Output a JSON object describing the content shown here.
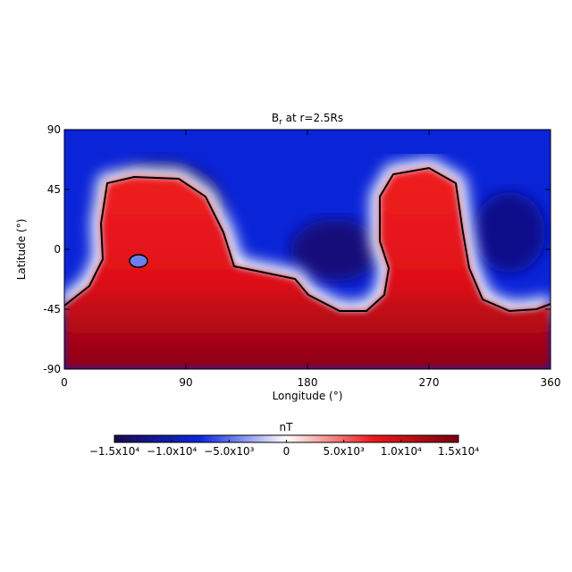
{
  "chart_data": {
    "type": "heatmap",
    "title": [
      "B",
      "r",
      " at r=2.5Rs"
    ],
    "x_label": "Longitude (°)",
    "y_label": "Latitude (°)",
    "xlim": [
      0,
      360
    ],
    "xticks": [
      0,
      90,
      180,
      270,
      360
    ],
    "ylim": [
      -90,
      90
    ],
    "yticks": [
      -90,
      -45,
      0,
      45,
      90
    ],
    "colorbar": {
      "label": "nT",
      "lim": [
        -15000,
        15000
      ],
      "colors": [
        "#1a0a50",
        "#0a28e0",
        "#ffffff",
        "#f01818",
        "#7a0010"
      ],
      "ticks": [
        {
          "value": -15000,
          "label": "−1.5x10⁴"
        },
        {
          "value": -10000,
          "label": "−1.0x10⁴"
        },
        {
          "value": -5000,
          "label": "−5.0x10³"
        },
        0,
        {
          "value": 5000,
          "label": "5.0x10³"
        },
        {
          "value": 10000,
          "label": "1.0x10⁴"
        },
        {
          "value": 15000,
          "label": "1.5x10⁴"
        }
      ]
    }
  }
}
